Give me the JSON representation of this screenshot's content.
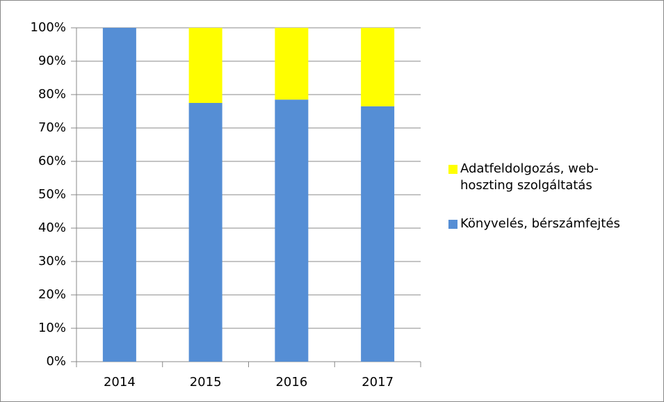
{
  "chart_data": {
    "type": "stacked_bar",
    "categories": [
      "2014",
      "2015",
      "2016",
      "2017"
    ],
    "series": [
      {
        "name": "Könyvelés, bérszámfejtés",
        "color": "#558ed5",
        "values": [
          100,
          77.5,
          78.5,
          76.5
        ]
      },
      {
        "name": "Adatfeldolgozás, web-hoszting szolgáltatás",
        "color": "#ffff00",
        "values": [
          0,
          22.5,
          21.5,
          23.5
        ]
      }
    ],
    "ylim": [
      0,
      100
    ],
    "yticks": [
      {
        "value": 0,
        "label": "0%"
      },
      {
        "value": 10,
        "label": "10%"
      },
      {
        "value": 20,
        "label": "20%"
      },
      {
        "value": 30,
        "label": "30%"
      },
      {
        "value": 40,
        "label": "40%"
      },
      {
        "value": 50,
        "label": "50%"
      },
      {
        "value": 60,
        "label": "60%"
      },
      {
        "value": 70,
        "label": "70%"
      },
      {
        "value": 80,
        "label": "80%"
      },
      {
        "value": 90,
        "label": "90%"
      },
      {
        "value": 100,
        "label": "100%"
      }
    ],
    "grid": true,
    "legend": "right"
  }
}
